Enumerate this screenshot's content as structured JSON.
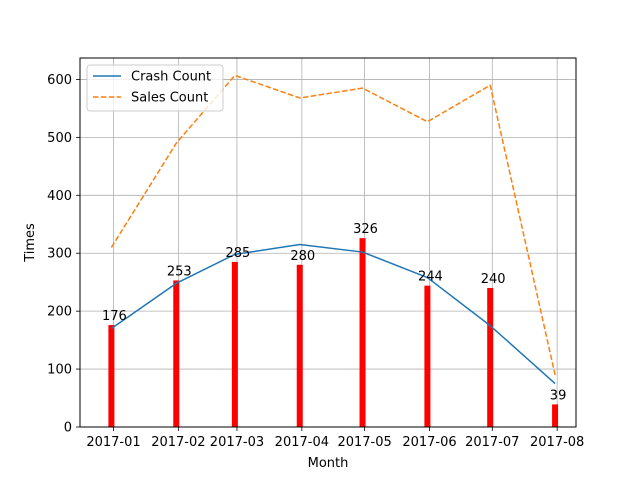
{
  "chart_data": {
    "type": "bar",
    "xlabel": "Month",
    "ylabel": "Times",
    "ylim": [
      0,
      637
    ],
    "xlim": [
      "2016-12-16",
      "2017-08-10"
    ],
    "grid": true,
    "legend_position": "top-left",
    "x_ticks": [
      "2017-01",
      "2017-02",
      "2017-03",
      "2017-04",
      "2017-05",
      "2017-06",
      "2017-07",
      "2017-08"
    ],
    "y_ticks": [
      0,
      100,
      200,
      300,
      400,
      500,
      600
    ],
    "x_dates": [
      "2016-12-31",
      "2017-01-31",
      "2017-02-28",
      "2017-03-31",
      "2017-04-30",
      "2017-05-31",
      "2017-06-30",
      "2017-07-31"
    ],
    "bars": {
      "values": [
        176,
        253,
        285,
        280,
        326,
        244,
        240,
        39
      ],
      "color": "#ff0000"
    },
    "series": [
      {
        "name": "Crash Count",
        "type": "line",
        "style": "solid",
        "color": "#1f77b4",
        "values": [
          170,
          248,
          298,
          315,
          302,
          258,
          175,
          75
        ]
      },
      {
        "name": "Sales Count",
        "type": "line",
        "style": "dashed",
        "color": "#ff7f0e",
        "values": [
          310,
          490,
          607,
          568,
          585,
          527,
          590,
          90
        ]
      }
    ]
  }
}
